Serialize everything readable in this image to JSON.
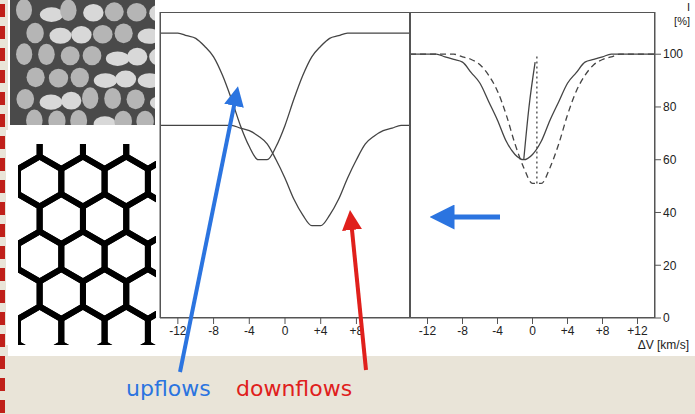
{
  "chart_data": [
    {
      "type": "line",
      "xlim": [
        -14,
        14
      ],
      "xticks": [
        -12,
        -8,
        -4,
        0,
        {
          "value": 4,
          "label": "+4"
        },
        {
          "value": 8,
          "label": "+8"
        }
      ],
      "ylim": [
        0,
        116
      ],
      "yticks": [
        0,
        20,
        40,
        60,
        80,
        100
      ],
      "tick_labels": "x",
      "x": [
        -14,
        -13,
        -12,
        -11,
        -10,
        -9,
        -8,
        -7,
        -6,
        -5,
        -4,
        -3,
        -2,
        -1,
        0,
        1,
        2,
        3,
        4,
        5,
        6,
        7,
        8,
        9,
        10,
        11,
        12,
        13,
        14
      ],
      "series": [
        {
          "color": "#444444",
          "line_style": "solid",
          "values": [
            108,
            108,
            108,
            107,
            106,
            103,
            99,
            92,
            83,
            73,
            65,
            60,
            60,
            65,
            73,
            83,
            92,
            99,
            103,
            106,
            107,
            108,
            108,
            108,
            108,
            108,
            108,
            108,
            108
          ]
        },
        {
          "color": "#444444",
          "line_style": "solid",
          "values": [
            73,
            73,
            73,
            73,
            73,
            73,
            73,
            73,
            73,
            72,
            71,
            69,
            66,
            60,
            53,
            45,
            39,
            35,
            35,
            39,
            45,
            53,
            60,
            66,
            69,
            71,
            72,
            73,
            73
          ]
        }
      ],
      "annotations": [
        {
          "text": "upflows",
          "color": "#2b74e0"
        },
        {
          "text": "downflows",
          "color": "#e0201c"
        }
      ]
    },
    {
      "type": "line",
      "xlabel": "ΔV [km/s]",
      "ylabel": "I [%]",
      "xlim": [
        -14,
        14
      ],
      "xticks": [
        -12,
        -8,
        -4,
        0,
        {
          "value": 4,
          "label": "+4"
        },
        {
          "value": 8,
          "label": "+8"
        },
        {
          "value": 12,
          "label": "+12"
        }
      ],
      "ylim": [
        0,
        116
      ],
      "yticks": [
        0,
        20,
        40,
        60,
        80,
        100
      ],
      "x": [
        -14,
        -13,
        -12,
        -11,
        -10,
        -9,
        -8,
        -7,
        -6,
        -5,
        -4,
        -3,
        -2,
        -1,
        0,
        1,
        2,
        3,
        4,
        5,
        6,
        7,
        8,
        9,
        10,
        11,
        12,
        13,
        14
      ],
      "series": [
        {
          "color": "#444444",
          "line_style": "solid",
          "values": [
            100,
            100,
            100,
            100,
            99,
            98,
            97,
            93,
            89,
            82,
            75,
            67,
            62,
            60,
            62,
            67,
            75,
            82,
            89,
            93,
            97,
            98,
            99,
            100,
            100,
            100,
            100,
            100,
            100
          ]
        },
        {
          "color": "#444444",
          "line_style": "dashed",
          "values": [
            100,
            100,
            100,
            100,
            100,
            100,
            99,
            98,
            96,
            92,
            86,
            77,
            66,
            57,
            51,
            51,
            57,
            66,
            77,
            86,
            92,
            96,
            98,
            99,
            100,
            100,
            100,
            100,
            100
          ]
        },
        {
          "color": "#444444",
          "line_style": "solid",
          "x": [
            -1,
            -0.4,
            0.3
          ],
          "values": [
            60,
            80,
            97
          ]
        },
        {
          "color": "#444444",
          "line_style": "dotted",
          "x": [
            0.5,
            0.5
          ],
          "values": [
            51,
            100
          ]
        }
      ]
    }
  ]
}
